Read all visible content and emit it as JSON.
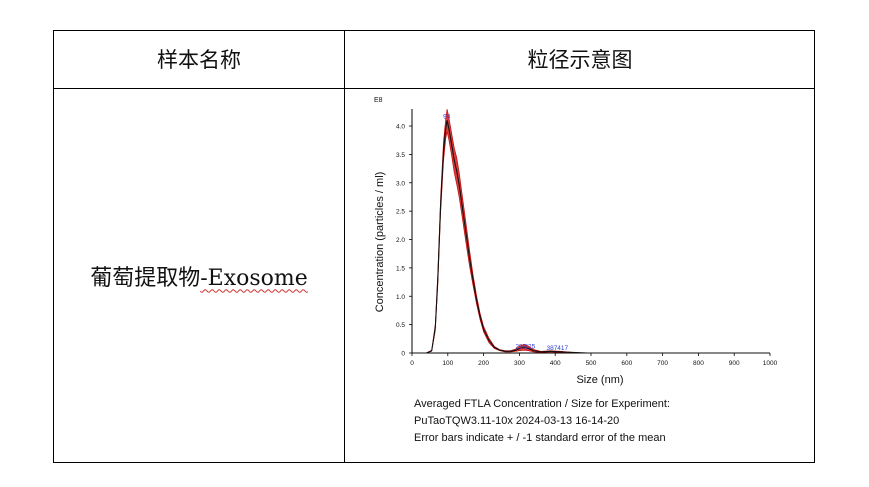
{
  "table": {
    "header_col1": "样本名称",
    "header_col2": "粒径示意图",
    "sample_name_cn": "葡萄提取物",
    "sample_name_en": "-Exosome"
  },
  "chart_data": {
    "type": "line",
    "title": "Averaged FTLA Concentration / Size for Experiment:",
    "experiment": "PuTaoTQW3.11-10x 2024-03-13 16-14-20",
    "note": "Error bars indicate + / -1 standard error of the mean",
    "xlabel": "Size (nm)",
    "ylabel": "Concentration (particles / ml)",
    "y_exponent_label": "E8",
    "xlim": [
      0,
      1000
    ],
    "ylim": [
      0,
      4.3
    ],
    "x_ticks": [
      0,
      100,
      200,
      300,
      400,
      500,
      600,
      700,
      800,
      900,
      1000
    ],
    "y_ticks": [
      0,
      0.5,
      1.0,
      1.5,
      2.0,
      2.5,
      3.0,
      3.5,
      4.0
    ],
    "y_tick_labels": [
      "0",
      "0.5",
      "1.0",
      "1.5",
      "2.0",
      "2.5",
      "3.0",
      "3.5",
      "4.0"
    ],
    "peak_labels": [
      {
        "text": "98",
        "x": 98,
        "y": 4.1
      },
      {
        "text": "298",
        "x": 300,
        "y": 0.04
      },
      {
        "text": "325",
        "x": 325,
        "y": 0.04
      },
      {
        "text": "387",
        "x": 387,
        "y": 0.02
      },
      {
        "text": "417",
        "x": 417,
        "y": 0.02
      }
    ],
    "series": [
      {
        "name": "mean",
        "x": [
          0,
          40,
          55,
          65,
          72,
          80,
          88,
          94,
          98,
          103,
          110,
          118,
          125,
          132,
          140,
          150,
          160,
          170,
          180,
          190,
          200,
          215,
          230,
          245,
          260,
          275,
          290,
          300,
          312,
          325,
          340,
          360,
          387,
          417,
          450,
          490,
          550,
          650,
          800,
          1000
        ],
        "y": [
          0,
          0,
          0.04,
          0.45,
          1.3,
          2.6,
          3.55,
          3.95,
          4.1,
          3.95,
          3.7,
          3.4,
          3.2,
          2.95,
          2.6,
          2.15,
          1.7,
          1.3,
          0.95,
          0.65,
          0.42,
          0.22,
          0.1,
          0.05,
          0.03,
          0.03,
          0.05,
          0.08,
          0.1,
          0.08,
          0.04,
          0.02,
          0.03,
          0.02,
          0.01,
          0.0,
          0.0,
          0.0,
          0.0,
          0.0
        ],
        "err": [
          0,
          0,
          0.01,
          0.06,
          0.12,
          0.15,
          0.18,
          0.18,
          0.2,
          0.2,
          0.2,
          0.22,
          0.24,
          0.22,
          0.2,
          0.18,
          0.15,
          0.1,
          0.08,
          0.06,
          0.05,
          0.04,
          0.02,
          0.01,
          0.01,
          0.01,
          0.02,
          0.04,
          0.05,
          0.04,
          0.02,
          0.01,
          0.01,
          0.01,
          0.0,
          0.0,
          0.0,
          0.0,
          0.0,
          0.0
        ]
      }
    ]
  }
}
